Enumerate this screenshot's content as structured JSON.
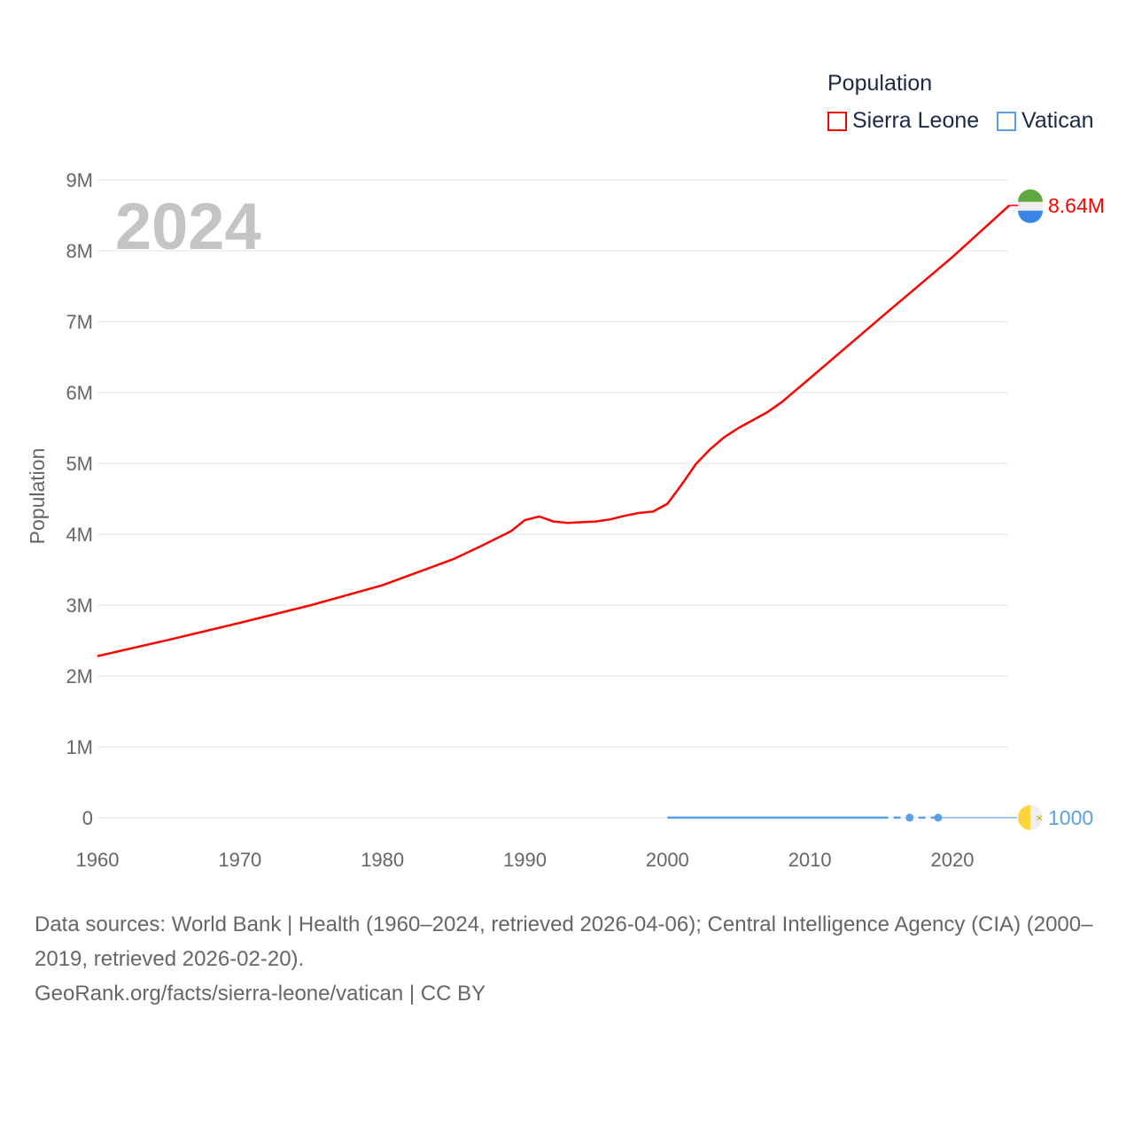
{
  "chart_data": {
    "type": "line",
    "title": "Population",
    "ylabel": "Population",
    "xlabel": "",
    "year_label": "2024",
    "xlim": [
      1960,
      2024
    ],
    "ylim": [
      0,
      9000000
    ],
    "x_ticks": [
      "1960",
      "1970",
      "1980",
      "1990",
      "2000",
      "2010",
      "2020"
    ],
    "y_ticks": [
      "0",
      "1M",
      "2M",
      "3M",
      "4M",
      "5M",
      "6M",
      "7M",
      "8M",
      "9M"
    ],
    "grid": true,
    "legend_position": "top-right",
    "series": [
      {
        "name": "Sierra Leone",
        "color": "#ff0000",
        "end_label": "8.64M",
        "x": [
          1960,
          1965,
          1970,
          1975,
          1980,
          1985,
          1987,
          1989,
          1990,
          1991,
          1992,
          1993,
          1994,
          1995,
          1996,
          1997,
          1998,
          1999,
          2000,
          2001,
          2002,
          2003,
          2004,
          2005,
          2007,
          2008,
          2010,
          2015,
          2020,
          2024
        ],
        "y": [
          2280000,
          2510000,
          2750000,
          3000000,
          3280000,
          3650000,
          3840000,
          4040000,
          4200000,
          4250000,
          4180000,
          4160000,
          4170000,
          4180000,
          4210000,
          4260000,
          4300000,
          4320000,
          4430000,
          4700000,
          4990000,
          5200000,
          5370000,
          5500000,
          5720000,
          5860000,
          6200000,
          7060000,
          7910000,
          8640000
        ]
      },
      {
        "name": "Vatican",
        "color": "#5aa0e6",
        "end_label": "1000",
        "x": [
          2000,
          2015,
          2017,
          2019,
          2024
        ],
        "y": [
          1000,
          1000,
          1000,
          1000,
          1000
        ],
        "dashed_from": 2015,
        "markers": [
          2017,
          2019
        ],
        "interpolated_from": 2019
      }
    ]
  },
  "footer": {
    "sources": "Data sources: World Bank | Health (1960–2024, retrieved 2026-04-06); Central Intelligence Agency (CIA) (2000–2019, retrieved 2026-02-20).",
    "credit": "GeoRank.org/facts/sierra-leone/vatican | CC BY"
  }
}
